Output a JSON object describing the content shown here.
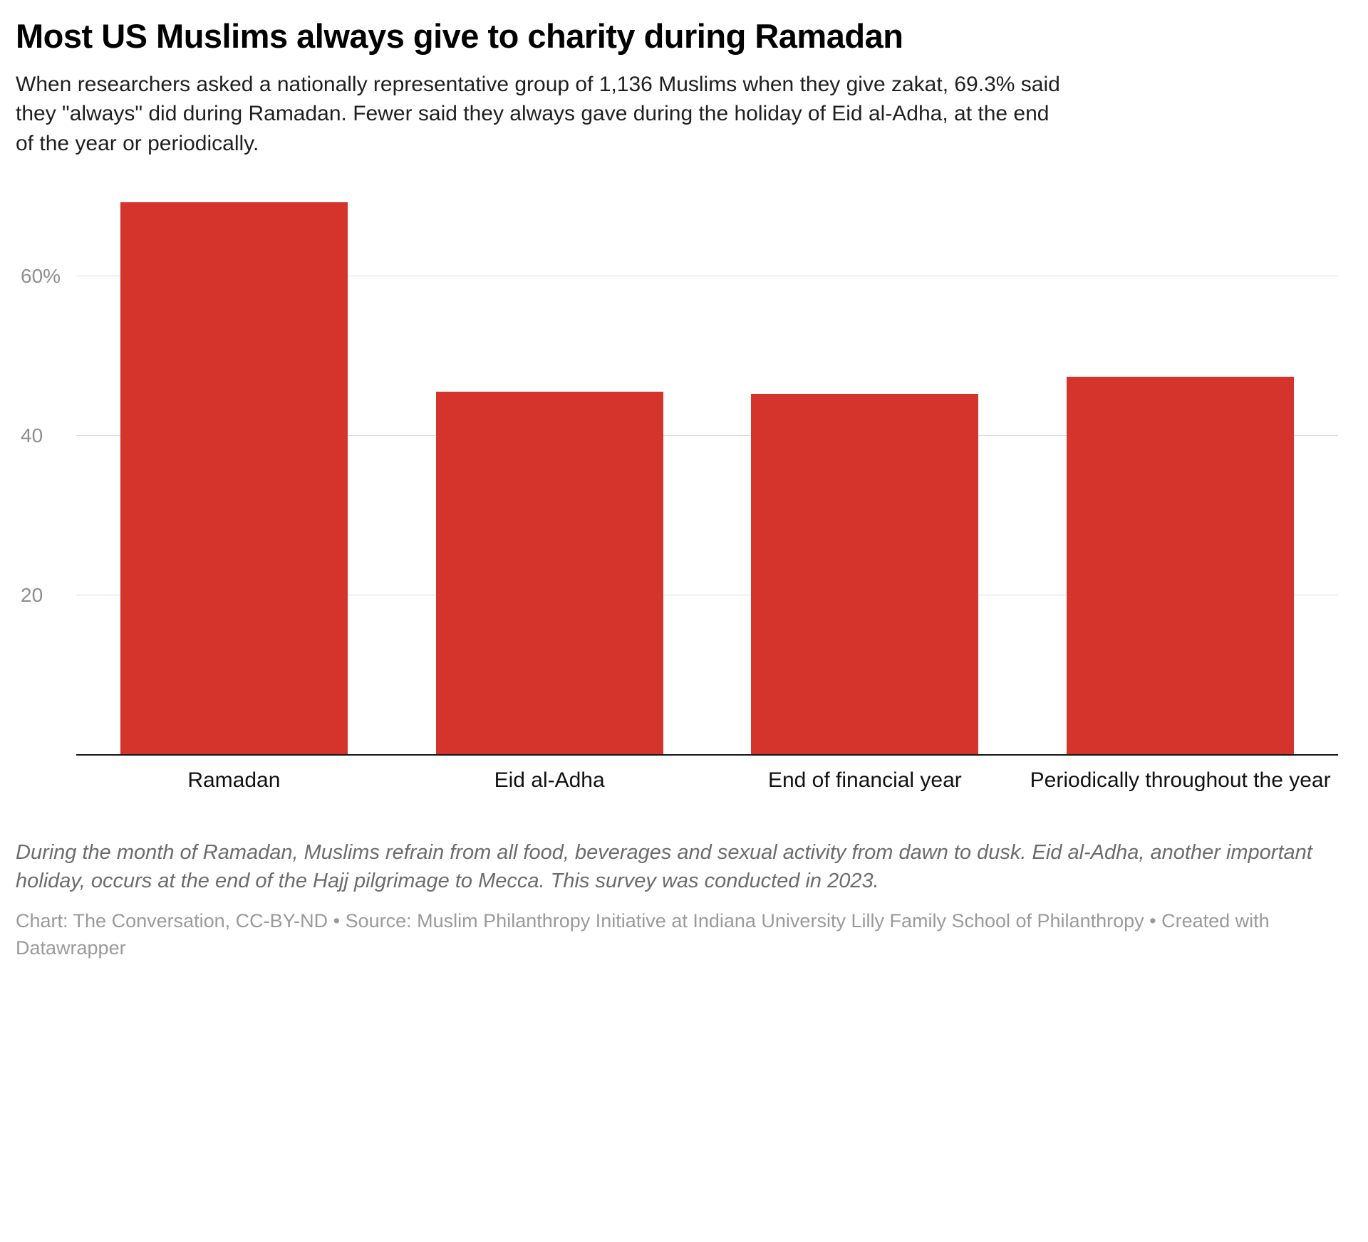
{
  "header": {
    "title": "Most US Muslims always give to charity during Ramadan",
    "subtitle": "When researchers asked a nationally representative group of 1,136 Muslims when they give zakat, 69.3% said they \"always\" did during Ramadan. Fewer said they always gave during the holiday of Eid al-Adha, at the end of the year or periodically."
  },
  "chart_data": {
    "type": "bar",
    "categories": [
      "Ramadan",
      "Eid al-Adha",
      "End of financial year",
      "Periodically throughout the year"
    ],
    "values": [
      69.3,
      45.5,
      45.3,
      47.4
    ],
    "title": "Most US Muslims always give to charity during Ramadan",
    "xlabel": "",
    "ylabel": "",
    "ylim": [
      0,
      69.3
    ],
    "yticks": [
      {
        "value": 20,
        "label": "20"
      },
      {
        "value": 40,
        "label": "40"
      },
      {
        "value": 60,
        "label": "60%"
      }
    ],
    "bar_color": "#d5342c",
    "grid": true,
    "legend": false
  },
  "footer": {
    "note": "During the month of Ramadan, Muslims refrain from all food, beverages and sexual activity from dawn to dusk. Eid al-Adha, another important holiday, occurs at the end of the Hajj pilgrimage to Mecca. This survey was conducted in 2023.",
    "source": "Chart: The Conversation, CC-BY-ND • Source: Muslim Philanthropy Initiative at Indiana University Lilly Family School of Philanthropy • Created with Datawrapper"
  }
}
